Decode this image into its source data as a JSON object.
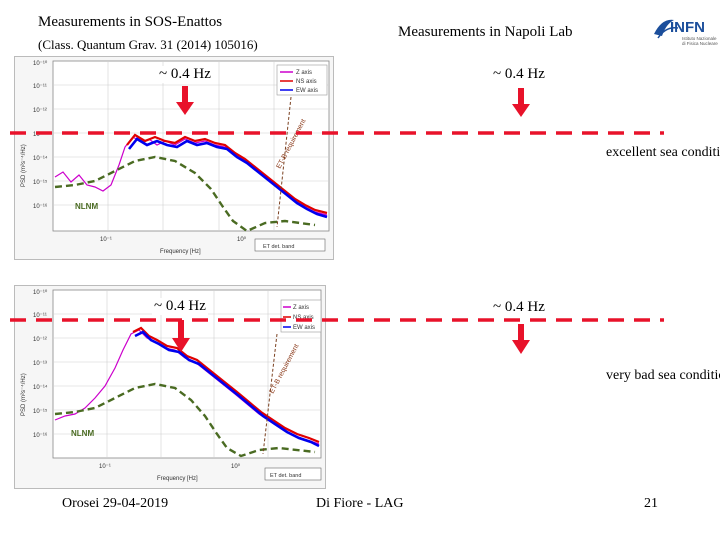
{
  "header": {
    "title_left": "Measurements in SOS-Enattos",
    "citation": "(Class. Quantum Grav. 31 (2014) 105016)",
    "title_right": "Measurements in Napoli Lab"
  },
  "logo": {
    "name": "INFN",
    "subtitle_1": "Istituto Nazionale",
    "subtitle_2": "di Fisica Nucleare",
    "color": "#1b4e9b"
  },
  "annotations": {
    "freq_top_left": "~ 0.4 Hz",
    "freq_top_right": "~ 0.4 Hz",
    "freq_bottom_left": "~ 0.4 Hz",
    "freq_bottom_right": "~ 0.4 Hz",
    "note_top": "excellent sea conditions",
    "note_bottom": "very bad sea conditions"
  },
  "plot_top": {
    "ylabel": "PSD (m²s⁻⁴/Hz)",
    "xlabel": "Frequency [Hz]",
    "yticks": [
      "10⁻¹⁰",
      "10⁻¹¹",
      "10⁻¹²",
      "10⁻¹³",
      "10⁻¹⁴",
      "10⁻¹⁵",
      "10⁻¹⁶"
    ],
    "xticks": [
      "10⁻¹",
      "10⁰"
    ],
    "legend": [
      "Z axis",
      "NS axis",
      "EW axis"
    ],
    "nlnm_label": "NLNM",
    "et_label": "ET-B requirement",
    "band_label": "ET det. band"
  },
  "plot_bottom": {
    "ylabel": "PSD (m²s⁻⁴/Hz)",
    "xlabel": "Frequency [Hz]",
    "yticks": [
      "10⁻¹⁰",
      "10⁻¹¹",
      "10⁻¹²",
      "10⁻¹³",
      "10⁻¹⁴",
      "10⁻¹⁵",
      "10⁻¹⁶"
    ],
    "xticks": [
      "10⁻¹",
      "10⁰"
    ],
    "legend": [
      "Z axis",
      "NS axis",
      "EW axis"
    ],
    "nlnm_label": "NLNM",
    "et_label": "ET-B requirement",
    "band_label": "ET det. band"
  },
  "footer": {
    "left": "Orosei 29-04-2019",
    "center": "Di Fiore - LAG",
    "page": "21"
  },
  "colors": {
    "threshold_line": "#e8122a",
    "arrow": "#e8122a",
    "z_axis": "#cc00cc",
    "ns_axis": "#e00000",
    "ew_axis": "#0000ee",
    "nlnm": "#4a6b22"
  }
}
